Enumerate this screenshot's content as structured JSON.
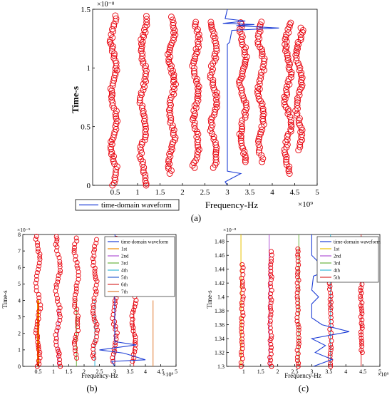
{
  "chart_data": [
    {
      "panel": "a",
      "type": "scatter",
      "caption": "(a)",
      "xlabel": "Frequency-Hz",
      "ylabel": "Time-s",
      "x_exponent": "×10⁹",
      "y_exponent": "×10⁻⁸",
      "xlim": [
        0,
        5
      ],
      "ylim": [
        0,
        1.5
      ],
      "xticks": [
        "0.5",
        "1",
        "1.5",
        "2",
        "2.5",
        "3",
        "3.5",
        "4",
        "4.5",
        "5"
      ],
      "yticks": [
        "0",
        "0.5",
        "1",
        "1.5"
      ],
      "legend": [
        "time-domain waveform"
      ],
      "legend_placement": "bottom-left, outside",
      "colors": {
        "markers": "#e8000b",
        "waveform": "#1f3fd6"
      },
      "resonance_columns": [
        {
          "x": 0.47,
          "y_from": 0.0,
          "y_to": 1.45
        },
        {
          "x": 1.13,
          "y_from": 0.0,
          "y_to": 1.45
        },
        {
          "x": 1.76,
          "y_from": 0.1,
          "y_to": 1.45
        },
        {
          "x": 2.3,
          "y_from": 0.15,
          "y_to": 1.4
        },
        {
          "x": 2.7,
          "y_from": 0.15,
          "y_to": 1.4
        },
        {
          "x": 3.35,
          "y_from": 0.2,
          "y_to": 1.4
        },
        {
          "x": 3.75,
          "y_from": 0.2,
          "y_to": 1.4
        },
        {
          "x": 4.35,
          "y_from": 0.1,
          "y_to": 1.4
        },
        {
          "x": 4.6,
          "y_from": 0.3,
          "y_to": 1.35
        }
      ],
      "waveform": [
        [
          3.0,
          0.0
        ],
        [
          2.95,
          0.03
        ],
        [
          3.3,
          0.1
        ],
        [
          3.0,
          0.12
        ],
        [
          3.0,
          1.2
        ],
        [
          3.05,
          1.22
        ],
        [
          3.1,
          1.32
        ],
        [
          4.15,
          1.34
        ],
        [
          3.2,
          1.36
        ],
        [
          3.6,
          1.37
        ],
        [
          2.9,
          1.38
        ],
        [
          3.4,
          1.4
        ],
        [
          2.95,
          1.42
        ],
        [
          3.0,
          1.5
        ]
      ]
    },
    {
      "panel": "b",
      "type": "scatter",
      "caption": "(b)",
      "xlabel": "Frequency-Hz",
      "ylabel": "Time-s",
      "x_exponent": "×10⁹",
      "y_exponent": "×10⁻⁹",
      "xlim": [
        0,
        5
      ],
      "ylim": [
        0,
        8
      ],
      "xticks": [
        "0.5",
        "1",
        "1.5",
        "2",
        "2.5",
        "3",
        "3.5",
        "4",
        "4.5",
        "5"
      ],
      "yticks": [
        "0",
        "1",
        "2",
        "3",
        "4",
        "5",
        "6",
        "7",
        "8"
      ],
      "legend": [
        "time-domain waveform",
        "1st",
        "2nd",
        "3rd",
        "4th",
        "5th",
        "6th",
        "7th"
      ],
      "legend_placement": "top-right",
      "colors": {
        "markers": "#e8000b",
        "waveform": "#1f3fd6",
        "modes": [
          "#f08a00",
          "#b054d6",
          "#6cb33f",
          "#35b7d8",
          "#3060d0",
          "#d83030",
          "#e07a30"
        ]
      },
      "mode_lines": [
        {
          "x": 0.5,
          "y_to": 4.0
        },
        {
          "x": 1.15,
          "y_to": 3.5
        },
        {
          "x": 1.75,
          "y_to": 4.0
        },
        {
          "x": 2.35,
          "y_to": 4.0
        },
        {
          "x": 3.0,
          "y_to": 6.5
        },
        {
          "x": 3.62,
          "y_to": 4.0
        },
        {
          "x": 4.25,
          "y_to": 4.0
        }
      ],
      "resonance_columns": [
        {
          "x": 0.5,
          "y_from": 0.0,
          "y_to": 8.0
        },
        {
          "x": 1.15,
          "y_from": 0.0,
          "y_to": 8.0
        },
        {
          "x": 1.75,
          "y_from": 0.5,
          "y_to": 7.8
        },
        {
          "x": 2.35,
          "y_from": 0.5,
          "y_to": 7.8
        },
        {
          "x": 3.0,
          "y_from": 0.3,
          "y_to": 7.8
        },
        {
          "x": 3.62,
          "y_from": 0.3,
          "y_to": 7.5
        }
      ],
      "waveform": [
        [
          3.0,
          0.0
        ],
        [
          2.9,
          0.3
        ],
        [
          4.0,
          0.4
        ],
        [
          3.3,
          0.8
        ],
        [
          2.5,
          1.0
        ],
        [
          3.7,
          1.3
        ],
        [
          3.0,
          1.5
        ],
        [
          3.0,
          6.0
        ],
        [
          3.05,
          6.2
        ],
        [
          3.1,
          7.3
        ],
        [
          3.0,
          8.0
        ]
      ]
    },
    {
      "panel": "c",
      "type": "scatter",
      "caption": "(c)",
      "xlabel": "Frequency-Hz",
      "ylabel": "Time-s",
      "x_exponent": "×10⁹",
      "y_exponent": "×10⁻⁸",
      "xlim": [
        0.5,
        5
      ],
      "ylim": [
        1.3,
        1.49
      ],
      "xticks": [
        "1",
        "1.5",
        "2",
        "2.5",
        "3",
        "3.5",
        "4",
        "4.5",
        "5"
      ],
      "yticks": [
        "1.3",
        "1.32",
        "1.34",
        "1.36",
        "1.38",
        "1.4",
        "1.42",
        "1.44",
        "1.46",
        "1.48"
      ],
      "legend": [
        "time-domain waveform",
        "1st",
        "2nd",
        "3rd",
        "4th",
        "5th"
      ],
      "legend_placement": "top-right",
      "colors": {
        "markers": "#e8000b",
        "waveform": "#1f3fd6",
        "modes": [
          "#e8c000",
          "#b054d6",
          "#6cb33f",
          "#35b7d8",
          "#d83030"
        ]
      },
      "mode_lines": [
        {
          "x": 0.92
        },
        {
          "x": 1.75
        },
        {
          "x": 2.62
        },
        {
          "x": 3.55
        },
        {
          "x": 4.45
        }
      ],
      "resonance_columns": [
        {
          "x": 0.95,
          "y_from": 1.3,
          "y_to": 1.45
        },
        {
          "x": 1.75,
          "y_from": 1.3,
          "y_to": 1.47
        },
        {
          "x": 2.55,
          "y_from": 1.3,
          "y_to": 1.47
        },
        {
          "x": 3.55,
          "y_from": 1.3,
          "y_to": 1.42
        },
        {
          "x": 4.5,
          "y_from": 1.32,
          "y_to": 1.42
        }
      ],
      "waveform": [
        [
          3.05,
          1.3
        ],
        [
          3.6,
          1.31
        ],
        [
          3.1,
          1.32
        ],
        [
          3.4,
          1.33
        ],
        [
          3.0,
          1.34
        ],
        [
          4.1,
          1.35
        ],
        [
          3.3,
          1.36
        ],
        [
          3.0,
          1.37
        ],
        [
          3.0,
          1.39
        ],
        [
          3.2,
          1.4
        ],
        [
          3.0,
          1.41
        ],
        [
          3.05,
          1.43
        ],
        [
          3.6,
          1.44
        ],
        [
          3.2,
          1.45
        ],
        [
          3.0,
          1.46
        ],
        [
          3.0,
          1.49
        ]
      ]
    }
  ]
}
